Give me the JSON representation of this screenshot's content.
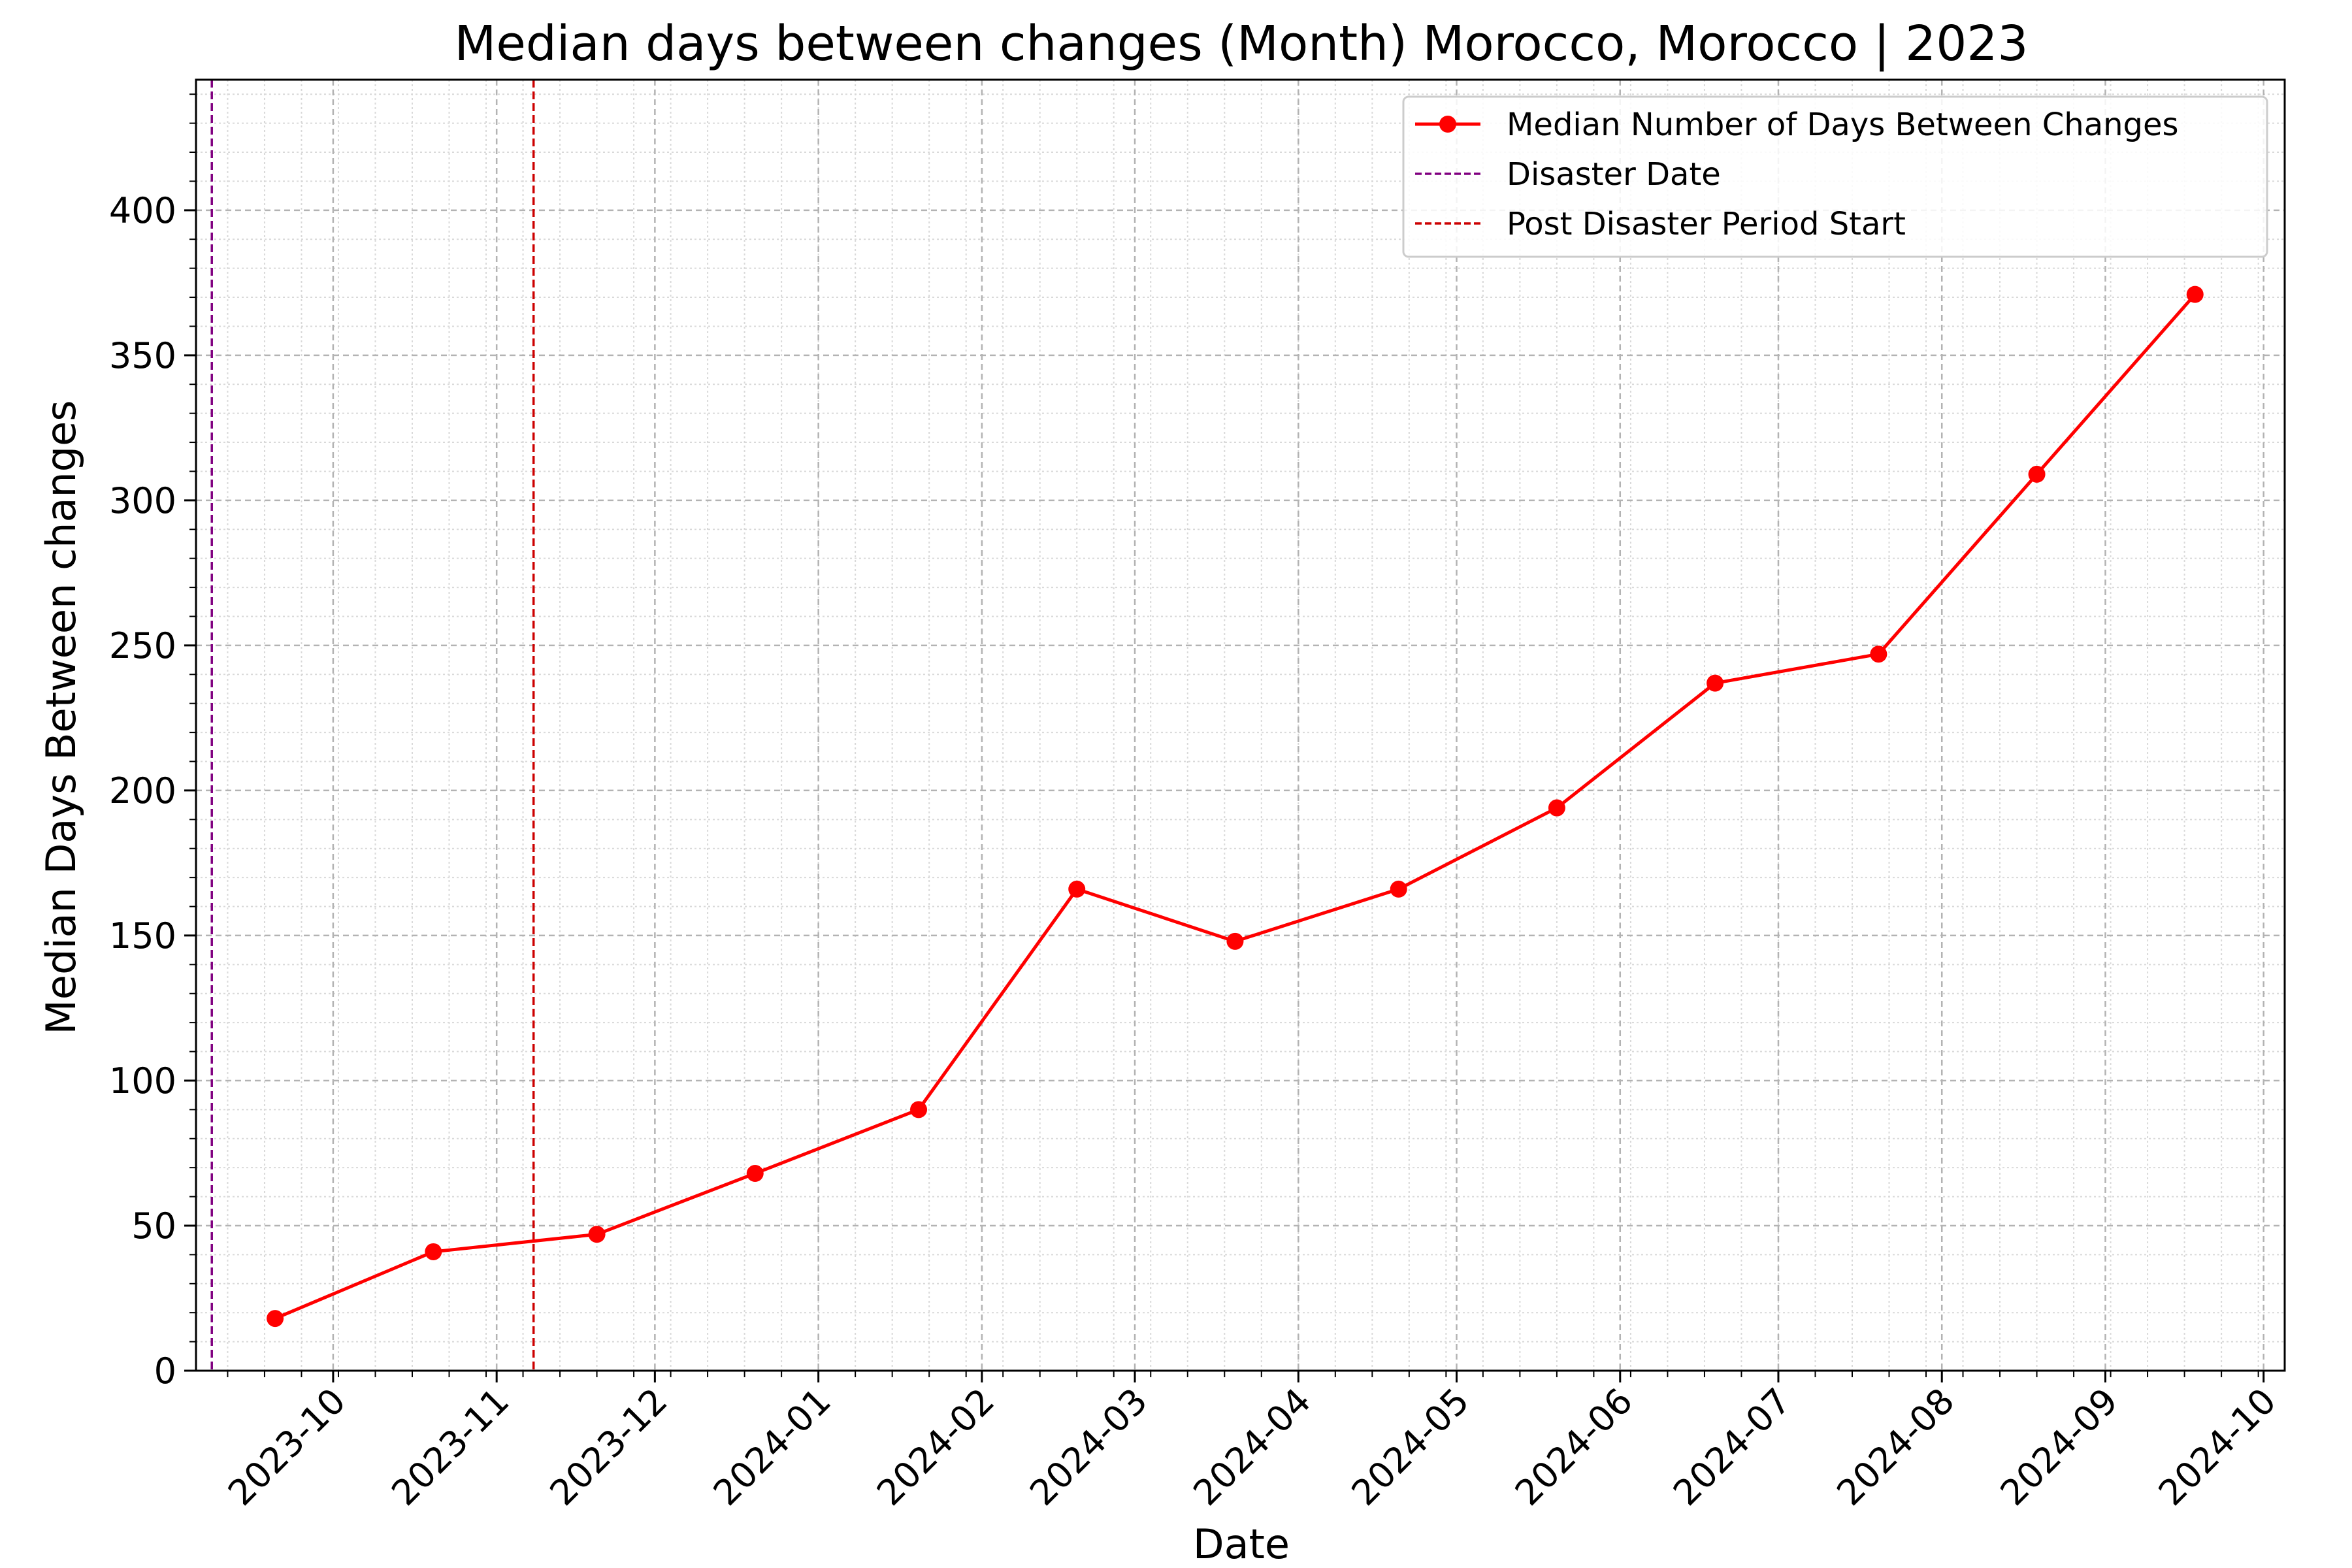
{
  "chart_data": {
    "type": "line",
    "title": "Median days between changes (Month) Morocco, Morocco | 2023",
    "xlabel": "Date",
    "ylabel": "Median Days Between changes",
    "x_tick_labels": [
      "2023-10",
      "2023-11",
      "2023-12",
      "2024-01",
      "2024-02",
      "2024-03",
      "2024-04",
      "2024-05",
      "2024-06",
      "2024-07",
      "2024-08",
      "2024-09",
      "2024-10"
    ],
    "x_tick_dates": [
      "2023-10-01",
      "2023-11-01",
      "2023-12-01",
      "2024-01-01",
      "2024-02-01",
      "2024-03-01",
      "2024-04-01",
      "2024-05-01",
      "2024-06-01",
      "2024-07-01",
      "2024-08-01",
      "2024-09-01",
      "2024-10-01"
    ],
    "xlim": [
      "2023-09-05",
      "2024-10-05"
    ],
    "ylim": [
      0,
      445
    ],
    "y_ticks": [
      0,
      50,
      100,
      150,
      200,
      250,
      300,
      350,
      400
    ],
    "grid": true,
    "legend_position": "top-right",
    "series": [
      {
        "name": "Median Number of Days Between Changes",
        "color": "#ff0000",
        "x": [
          "2023-09-20",
          "2023-10-20",
          "2023-11-20",
          "2023-12-20",
          "2024-01-20",
          "2024-02-19",
          "2024-03-20",
          "2024-04-20",
          "2024-05-20",
          "2024-06-19",
          "2024-07-20",
          "2024-08-19",
          "2024-09-18"
        ],
        "y": [
          18,
          41,
          47,
          68,
          90,
          166,
          148,
          166,
          194,
          237,
          247,
          309,
          371
        ]
      }
    ],
    "vlines": [
      {
        "name": "Disaster Date",
        "date": "2023-09-08",
        "color": "#800080"
      },
      {
        "name": "Post Disaster Period Start",
        "date": "2023-11-08",
        "color": "#cc0000"
      }
    ]
  }
}
